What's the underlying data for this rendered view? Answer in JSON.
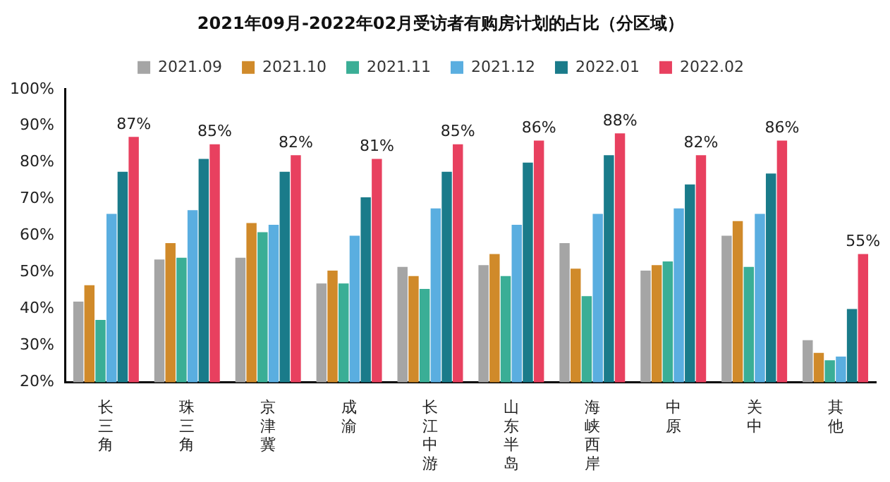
{
  "chart_data": {
    "type": "bar",
    "title": "2021年09月-2022年02月受访者有购房计划的占比（分区域）",
    "categories": [
      "长三角",
      "珠三角",
      "京津冀",
      "成渝",
      "长江中游",
      "山东半岛",
      "海峡西岸",
      "中原",
      "关中",
      "其他"
    ],
    "series": [
      {
        "name": "2021.09",
        "color": "#a5a5a5",
        "values": [
          42,
          53.5,
          54,
          47,
          51.5,
          52,
          58,
          50.5,
          60,
          31.5
        ]
      },
      {
        "name": "2021.10",
        "color": "#d08a2a",
        "values": [
          46.5,
          58,
          63.5,
          50.5,
          49,
          55,
          51,
          52,
          64,
          28
        ]
      },
      {
        "name": "2021.11",
        "color": "#3aae96",
        "values": [
          37,
          54,
          61,
          47,
          45.5,
          49,
          43.5,
          53,
          51.5,
          26
        ]
      },
      {
        "name": "2021.12",
        "color": "#5aaee0",
        "values": [
          66,
          67,
          63,
          60,
          67.5,
          63,
          66,
          67.5,
          66,
          27
        ]
      },
      {
        "name": "2022.01",
        "color": "#1a7b8a",
        "values": [
          77.5,
          81,
          77.5,
          70.5,
          77.5,
          80,
          82,
          74,
          77,
          40
        ]
      },
      {
        "name": "2022.02",
        "color": "#e8405f",
        "values": [
          87,
          85,
          82,
          81,
          85,
          86,
          88,
          82,
          86,
          55
        ],
        "value_labels": [
          "87%",
          "85%",
          "82%",
          "81%",
          "85%",
          "86%",
          "88%",
          "82%",
          "86%",
          "55%"
        ]
      }
    ],
    "ylim": [
      20,
      100
    ],
    "yticks": [
      {
        "value": 20,
        "label": "20%"
      },
      {
        "value": 30,
        "label": "30%"
      },
      {
        "value": 40,
        "label": "40%"
      },
      {
        "value": 50,
        "label": "50%"
      },
      {
        "value": 60,
        "label": "60%"
      },
      {
        "value": 70,
        "label": "70%"
      },
      {
        "value": 80,
        "label": "80%"
      },
      {
        "value": 90,
        "label": "90%"
      },
      {
        "value": 100,
        "label": "100%"
      }
    ],
    "grid": false,
    "legend": "top"
  }
}
